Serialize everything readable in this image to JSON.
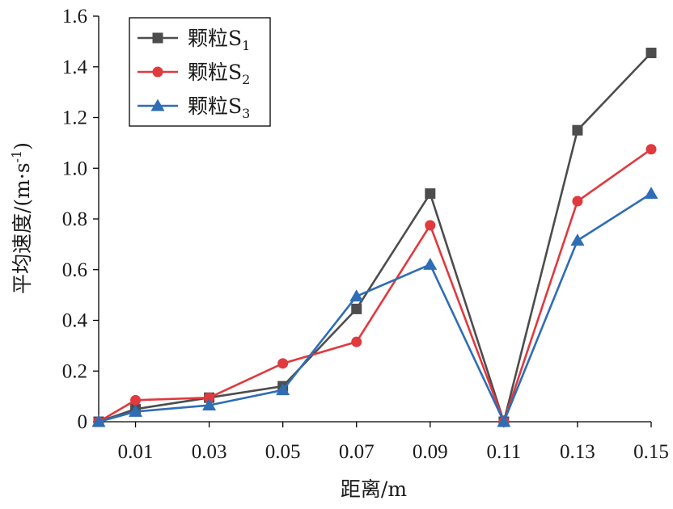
{
  "chart_data": {
    "type": "line",
    "title": "",
    "xlabel": "距离/m",
    "ylabel": "平均速度/(m·s",
    "ylabel_sup": "-1",
    "ylabel_tail": ")",
    "x_ticks": [
      "0.01",
      "0.03",
      "0.05",
      "0.07",
      "0.09",
      "0.11",
      "0.13",
      "0.15"
    ],
    "y_ticks": [
      "0",
      "0.2",
      "0.4",
      "0.6",
      "0.8",
      "1.0",
      "1.2",
      "1.4",
      "1.6"
    ],
    "x": [
      0.0,
      0.01,
      0.03,
      0.05,
      0.07,
      0.09,
      0.11,
      0.13,
      0.15
    ],
    "xlim": [
      0.0,
      0.15
    ],
    "ylim": [
      0,
      1.6
    ],
    "grid": false,
    "legend_position": "top-left",
    "series": [
      {
        "name": "颗粒S",
        "subscript": "1",
        "color": "#4d4d4d",
        "marker": "square",
        "values": [
          0.0,
          0.05,
          0.095,
          0.14,
          0.445,
          0.9,
          0.0,
          1.15,
          1.455
        ]
      },
      {
        "name": "颗粒S",
        "subscript": "2",
        "color": "#e0393e",
        "marker": "circle",
        "values": [
          0.0,
          0.085,
          0.095,
          0.23,
          0.315,
          0.775,
          0.0,
          0.87,
          1.075
        ]
      },
      {
        "name": "颗粒S",
        "subscript": "3",
        "color": "#2f6db5",
        "marker": "triangle",
        "values": [
          0.0,
          0.04,
          0.065,
          0.125,
          0.495,
          0.62,
          0.0,
          0.715,
          0.9
        ]
      }
    ]
  }
}
